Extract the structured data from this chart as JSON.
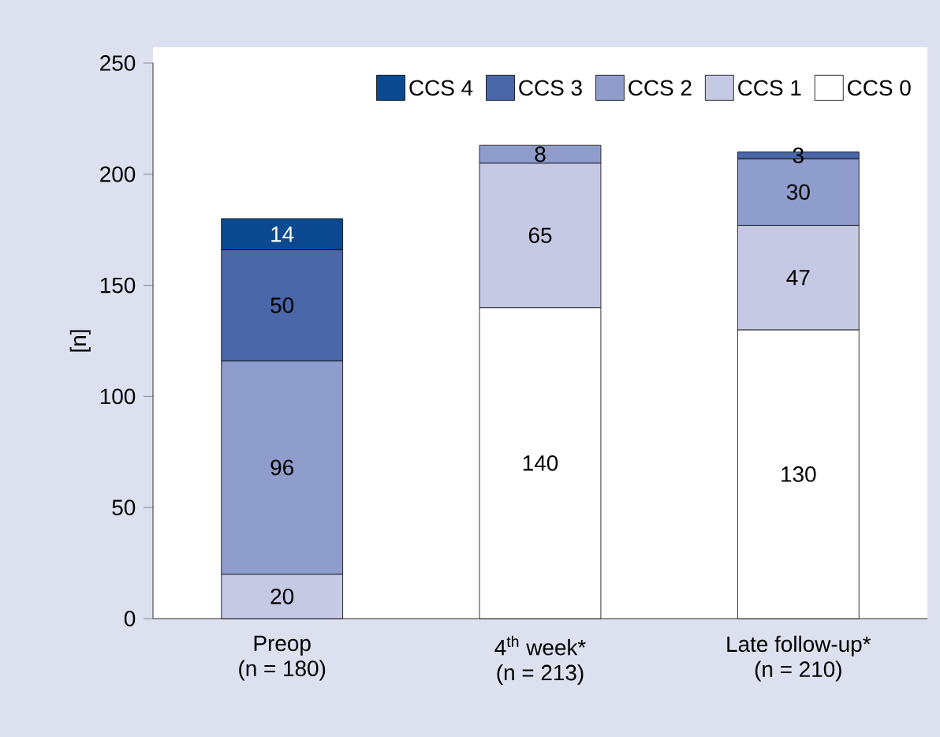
{
  "chart_data": {
    "type": "bar",
    "stacked": true,
    "ylabel": "[n]",
    "categories": [
      "Preop\n(n = 180)",
      "4$^{th}$ week*\n(n = 213)",
      "Late follow-up*\n(n = 210)"
    ],
    "series": [
      {
        "name": "CCS 0",
        "color": "#ffffff",
        "values": [
          null,
          140,
          130
        ],
        "value_labels": [
          null,
          "140",
          "130"
        ]
      },
      {
        "name": "CCS 1",
        "color": "#c5c9e4",
        "values": [
          20,
          65,
          47
        ],
        "value_labels": [
          "20",
          "65",
          "47"
        ]
      },
      {
        "name": "CCS 2",
        "color": "#8f9dcc",
        "values": [
          96,
          8,
          30
        ],
        "value_labels": [
          "96",
          "8",
          "30"
        ]
      },
      {
        "name": "CCS 3",
        "color": "#4a67aa",
        "values": [
          50,
          null,
          3
        ],
        "value_labels": [
          "50",
          null,
          "3"
        ]
      },
      {
        "name": "CCS 4",
        "color": "#0b4a91",
        "values": [
          14,
          null,
          null
        ],
        "value_labels": [
          "14",
          null,
          null
        ]
      }
    ],
    "ylim": [
      0,
      250
    ],
    "yticks": [
      0,
      50,
      100,
      150,
      200,
      250
    ],
    "legend": "top right"
  }
}
